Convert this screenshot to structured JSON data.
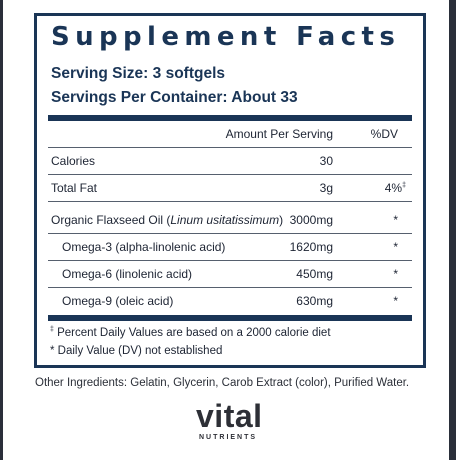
{
  "panel": {
    "title": "Supplement Facts",
    "serving_size": "Serving Size: 3 softgels",
    "servings_per_container": "Servings Per Container: About 33",
    "header": {
      "amount": "Amount Per Serving",
      "dv": "%DV"
    },
    "rows": [
      {
        "name": "Calories",
        "amount": "30",
        "dv": ""
      },
      {
        "name": "Total Fat",
        "amount": "3g",
        "dv": "4%",
        "dv_mark": "‡"
      },
      {
        "name_prefix": "Organic Flaxseed Oil (",
        "name_italic": "Linum usitatissimum",
        "name_suffix": ")",
        "amount": "3000mg",
        "dv": "*"
      },
      {
        "name": "Omega-3 (alpha-linolenic acid)",
        "amount": "1620mg",
        "dv": "*"
      },
      {
        "name": "Omega-6 (linolenic acid)",
        "amount": "450mg",
        "dv": "*"
      },
      {
        "name": "Omega-9 (oleic acid)",
        "amount": "630mg",
        "dv": "*"
      }
    ],
    "footnotes": {
      "percent_note_mark": "‡",
      "percent_note": "Percent Daily Values are based on a 2000 calorie diet",
      "dv_note": "* Daily Value (DV) not established"
    }
  },
  "other_ingredients": "Other Ingredients: Gelatin, Glycerin, Carob Extract (color), Purified Water.",
  "logo": {
    "word": "vital",
    "sub": "NUTRIENTS"
  },
  "colors": {
    "panel_border": "#1a3556",
    "text": "#1d2433"
  }
}
